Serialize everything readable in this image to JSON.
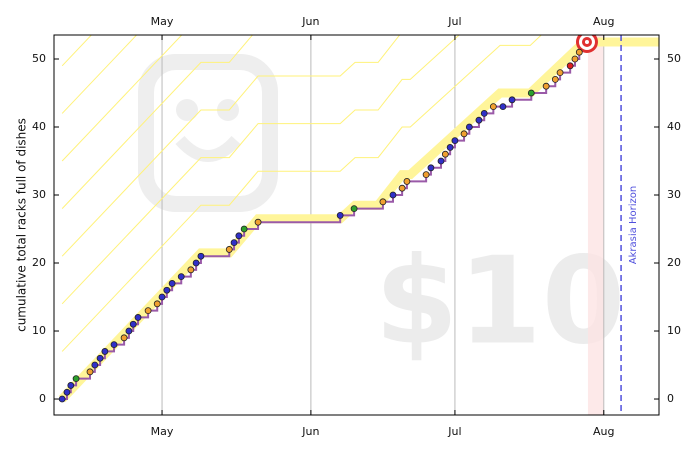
{
  "chart_data": {
    "type": "step",
    "ylabel": "cumulative total racks full of dishes",
    "xlim": [
      -22.5,
      103.5
    ],
    "ylim": [
      -2.35,
      53.53
    ],
    "xticks": [
      {
        "value": 0,
        "label": "May"
      },
      {
        "value": 31,
        "label": "Jun"
      },
      {
        "value": 61,
        "label": "Jul"
      },
      {
        "value": 92,
        "label": "Aug"
      }
    ],
    "yticks": [
      0,
      10,
      20,
      30,
      40,
      50
    ],
    "grid": true,
    "x": [
      -20.8,
      -19.8,
      -19,
      -17.9,
      -15,
      -14,
      -12.9,
      -11.9,
      -10,
      -7.9,
      -6.9,
      -6,
      -5,
      -2.9,
      -1,
      0,
      1,
      2.1,
      4,
      6,
      7.1,
      8.1,
      14,
      15,
      16,
      17.1,
      20,
      37.1,
      40,
      46,
      48.1,
      50,
      51,
      55,
      56,
      58.1,
      59,
      60,
      61,
      62.9,
      64,
      66,
      67.1,
      69,
      71,
      72.9,
      76.9,
      80,
      81.9,
      82.9,
      85,
      86,
      86.9
    ],
    "values": [
      0,
      1,
      2,
      3,
      4,
      5,
      6,
      7,
      8,
      9,
      10,
      11,
      12,
      13,
      14,
      15,
      16,
      17,
      18,
      19,
      20,
      21,
      22,
      23,
      24,
      25,
      26,
      27,
      28,
      29,
      30,
      31,
      32,
      33,
      34,
      35,
      36,
      37,
      38,
      39,
      40,
      41,
      42,
      43,
      43,
      44,
      45,
      46,
      47,
      48,
      49,
      50,
      51
    ],
    "point_colors": [
      "#3030c8",
      "#3030c8",
      "#3030c8",
      "#2ca02c",
      "#f0a030",
      "#3030c8",
      "#3030c8",
      "#3030c8",
      "#3030c8",
      "#f0a030",
      "#3030c8",
      "#3030c8",
      "#3030c8",
      "#f0a030",
      "#f0a030",
      "#3030c8",
      "#3030c8",
      "#3030c8",
      "#3030c8",
      "#f0a030",
      "#3030c8",
      "#3030c8",
      "#f0a030",
      "#3030c8",
      "#3030c8",
      "#2ca02c",
      "#f0a030",
      "#3030c8",
      "#2ca02c",
      "#f0a030",
      "#3030c8",
      "#f0a030",
      "#f0a030",
      "#f0a030",
      "#3030c8",
      "#3030c8",
      "#f0a030",
      "#3030c8",
      "#3030c8",
      "#f0a030",
      "#3030c8",
      "#3030c8",
      "#3030c8",
      "#f0a030",
      "#3030c8",
      "#3030c8",
      "#2ca02c",
      "#f0a030",
      "#f0a030",
      "#f0a030",
      "#e02020",
      "#f0a030",
      "#f0a030"
    ],
    "step_color": "#9a5aa8",
    "road": {
      "x": [
        -20.8,
        8.1,
        14,
        20,
        37.1,
        40.2,
        45,
        50,
        51.7,
        70.4,
        76.7,
        87.9,
        103.5
      ],
      "values": [
        0,
        21.5,
        21.5,
        26.5,
        26.5,
        28.5,
        28.5,
        33,
        33,
        45,
        45,
        52.5,
        52.5
      ],
      "color": "#fff59a"
    },
    "guideline_offsets": [
      7,
      14,
      21,
      28,
      35,
      42,
      49
    ],
    "guideline_color": "#fff27a",
    "today_band": [
      88.7,
      92
    ],
    "goal": {
      "x": 88.5,
      "value": 52.5
    },
    "akrasia_horizon": {
      "x": 95.6,
      "label": "Akrasia Horizon"
    },
    "watermark": "$10"
  }
}
